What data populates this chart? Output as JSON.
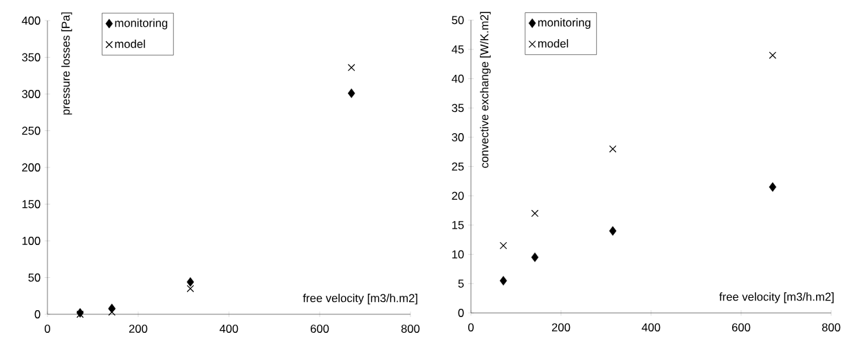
{
  "chart_data": [
    {
      "type": "scatter",
      "xlabel": "free velocity [m3/h.m2]",
      "ylabel": "pressure losses [Pa]",
      "x": [
        72,
        142,
        315,
        670
      ],
      "series": [
        {
          "name": "monitoring",
          "color": "#000000",
          "marker": "diamond",
          "values": [
            2,
            8,
            44,
            301
          ]
        },
        {
          "name": "model",
          "color": "#000000",
          "marker": "cross",
          "values": [
            0,
            3,
            35,
            336
          ]
        }
      ],
      "xlim": [
        0,
        800
      ],
      "ylim": [
        0,
        400
      ],
      "xticks": [
        0,
        200,
        400,
        600,
        800
      ],
      "yticks": [
        0,
        50,
        100,
        150,
        200,
        250,
        300,
        350,
        400
      ],
      "grid": false,
      "legend": "top left"
    },
    {
      "type": "scatter",
      "xlabel": "free velocity [m3/h.m2]",
      "ylabel": "convective exchange [W/K.m2]",
      "x": [
        72,
        142,
        315,
        670
      ],
      "series": [
        {
          "name": "monitoring",
          "color": "#000000",
          "marker": "diamond",
          "values": [
            5.5,
            9.5,
            14,
            21.5
          ]
        },
        {
          "name": "model",
          "color": "#000000",
          "marker": "cross",
          "values": [
            11.5,
            17,
            28,
            44
          ]
        }
      ],
      "xlim": [
        0,
        800
      ],
      "ylim": [
        0,
        50
      ],
      "xticks": [
        0,
        200,
        400,
        600,
        800
      ],
      "yticks": [
        0,
        5,
        10,
        15,
        20,
        25,
        30,
        35,
        40,
        45,
        50
      ],
      "grid": false,
      "legend": "top left"
    }
  ]
}
